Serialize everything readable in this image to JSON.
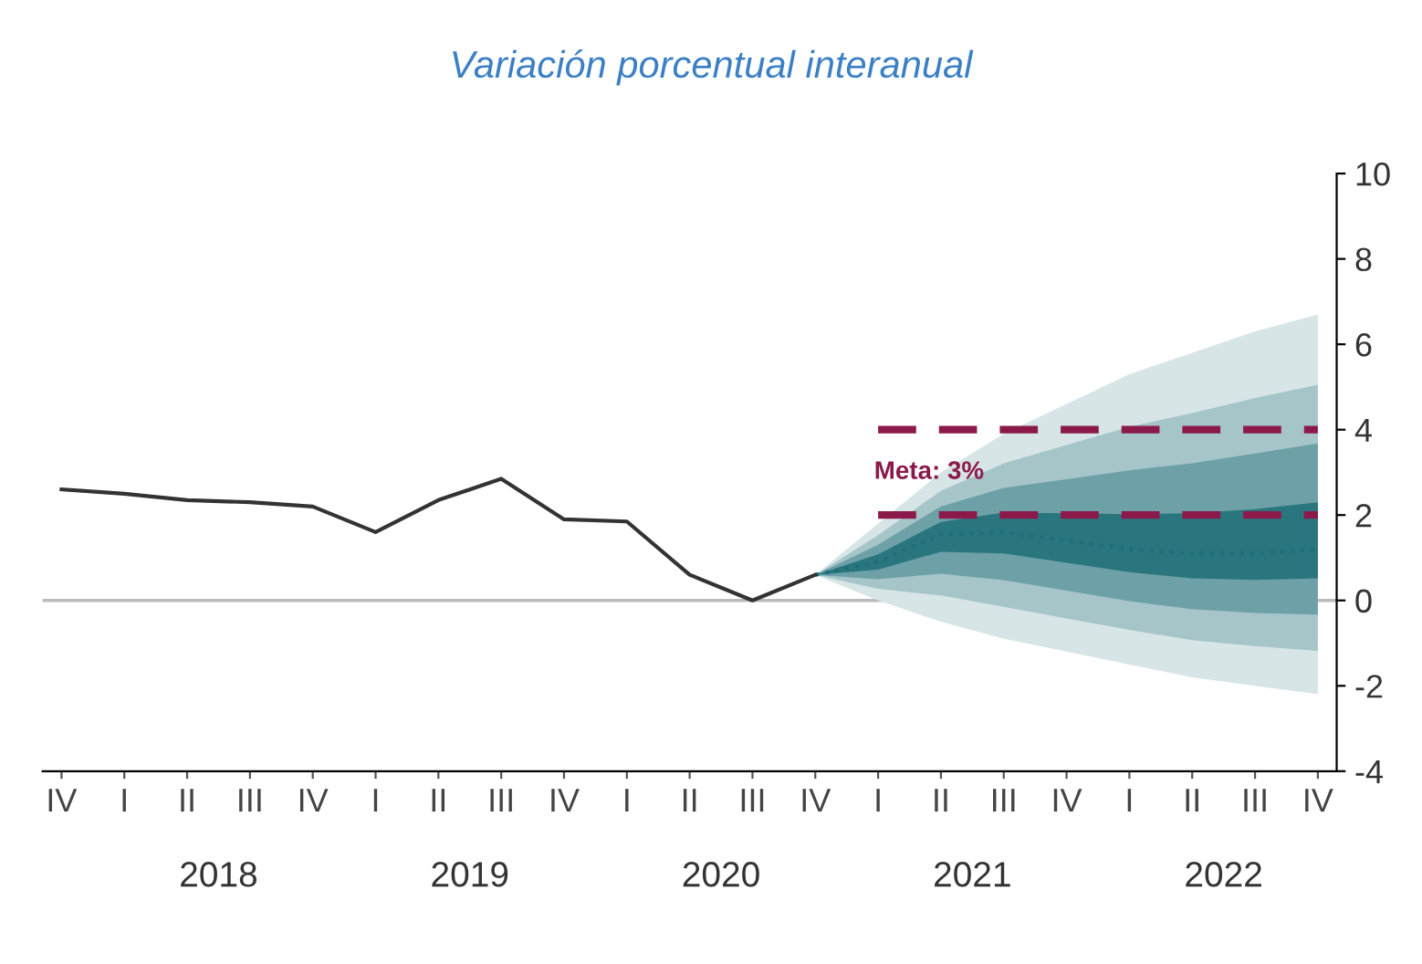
{
  "chart_data": {
    "type": "line",
    "title": "Variación porcentual interanual",
    "categories": [
      "IV",
      "I",
      "II",
      "III",
      "IV",
      "I",
      "II",
      "III",
      "IV",
      "I",
      "II",
      "III",
      "IV",
      "I",
      "II",
      "III",
      "IV",
      "I",
      "II",
      "III",
      "IV"
    ],
    "series": [
      {
        "color": "#1f6f78",
        "line_style": "dotted",
        "values": [
          null,
          null,
          null,
          null,
          null,
          null,
          null,
          null,
          null,
          null,
          null,
          null,
          0.6,
          0.9,
          1.55,
          1.6,
          1.4,
          1.2,
          1.1,
          1.1,
          1.2
        ],
        "lower": [
          null,
          null,
          null,
          null,
          null,
          null,
          null,
          null,
          null,
          null,
          null,
          null,
          0.6,
          0.0,
          -0.5,
          -0.9,
          -1.2,
          -1.5,
          -1.8,
          -2.0,
          -2.2
        ],
        "upper": [
          null,
          null,
          null,
          null,
          null,
          null,
          null,
          null,
          null,
          null,
          null,
          null,
          0.6,
          1.8,
          3.0,
          3.9,
          4.6,
          5.3,
          5.8,
          6.3,
          6.7
        ]
      },
      {
        "color": "#333333",
        "line_style": "solid",
        "values": [
          2.6,
          2.5,
          2.35,
          2.3,
          2.2,
          1.6,
          2.35,
          2.85,
          1.9,
          1.85,
          0.6,
          0.0,
          0.6,
          null,
          null,
          null,
          null,
          null,
          null,
          null,
          null
        ]
      },
      {
        "color": "#8b1a4a",
        "line_style": "dashed",
        "values": [
          null,
          null,
          null,
          null,
          null,
          null,
          null,
          null,
          null,
          null,
          null,
          null,
          null,
          4,
          4,
          4,
          4,
          4,
          4,
          4,
          4
        ]
      },
      {
        "color": "#8b1a4a",
        "line_style": "dashed",
        "values": [
          null,
          null,
          null,
          null,
          null,
          null,
          null,
          null,
          null,
          null,
          null,
          null,
          null,
          2,
          2,
          2,
          2,
          2,
          2,
          2,
          2
        ]
      }
    ],
    "ref_lines": [
      {
        "axis": "y",
        "value": 0,
        "color": "#bbbbbb",
        "line_style": "solid"
      }
    ],
    "annotations": [
      "Meta: 3%",
      "2018",
      "2019",
      "2020",
      "2021",
      "2022"
    ],
    "ylim": [
      -4,
      10
    ],
    "yticks": [
      -4,
      -2,
      0,
      2,
      4,
      6,
      8,
      10
    ],
    "grid": false,
    "legend": false
  }
}
